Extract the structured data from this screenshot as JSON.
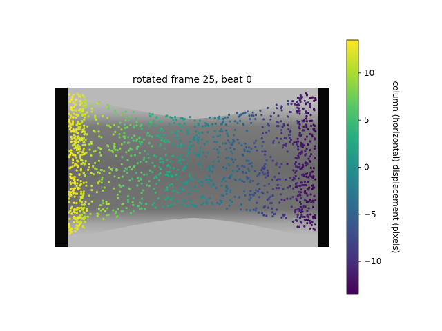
{
  "chart_data": {
    "type": "scatter",
    "title": "rotated frame 25, beat 0",
    "xlabel": "",
    "ylabel": "",
    "x_range": [
      0,
      400
    ],
    "y_range": [
      0,
      230
    ],
    "axes_visible": false,
    "grid": false,
    "legend": "none",
    "background": "grayscale microscopy image of a tissue strip between two dark posts",
    "colorbar": {
      "label": "column (horizontal) displacement (pixels)",
      "colormap": "viridis",
      "range": [
        -13.5,
        13.5
      ],
      "ticks": [
        -10,
        -5,
        0,
        5,
        10
      ],
      "tick_labels": [
        "−10",
        "−5",
        "0",
        "5",
        "10"
      ]
    },
    "series": [
      {
        "color_field": "column displacement",
        "point_count": 1500,
        "x_extent": [
          20,
          380
        ],
        "displacement_trend": "+13 at left edge decreasing linearly to -13 at right edge"
      }
    ]
  }
}
